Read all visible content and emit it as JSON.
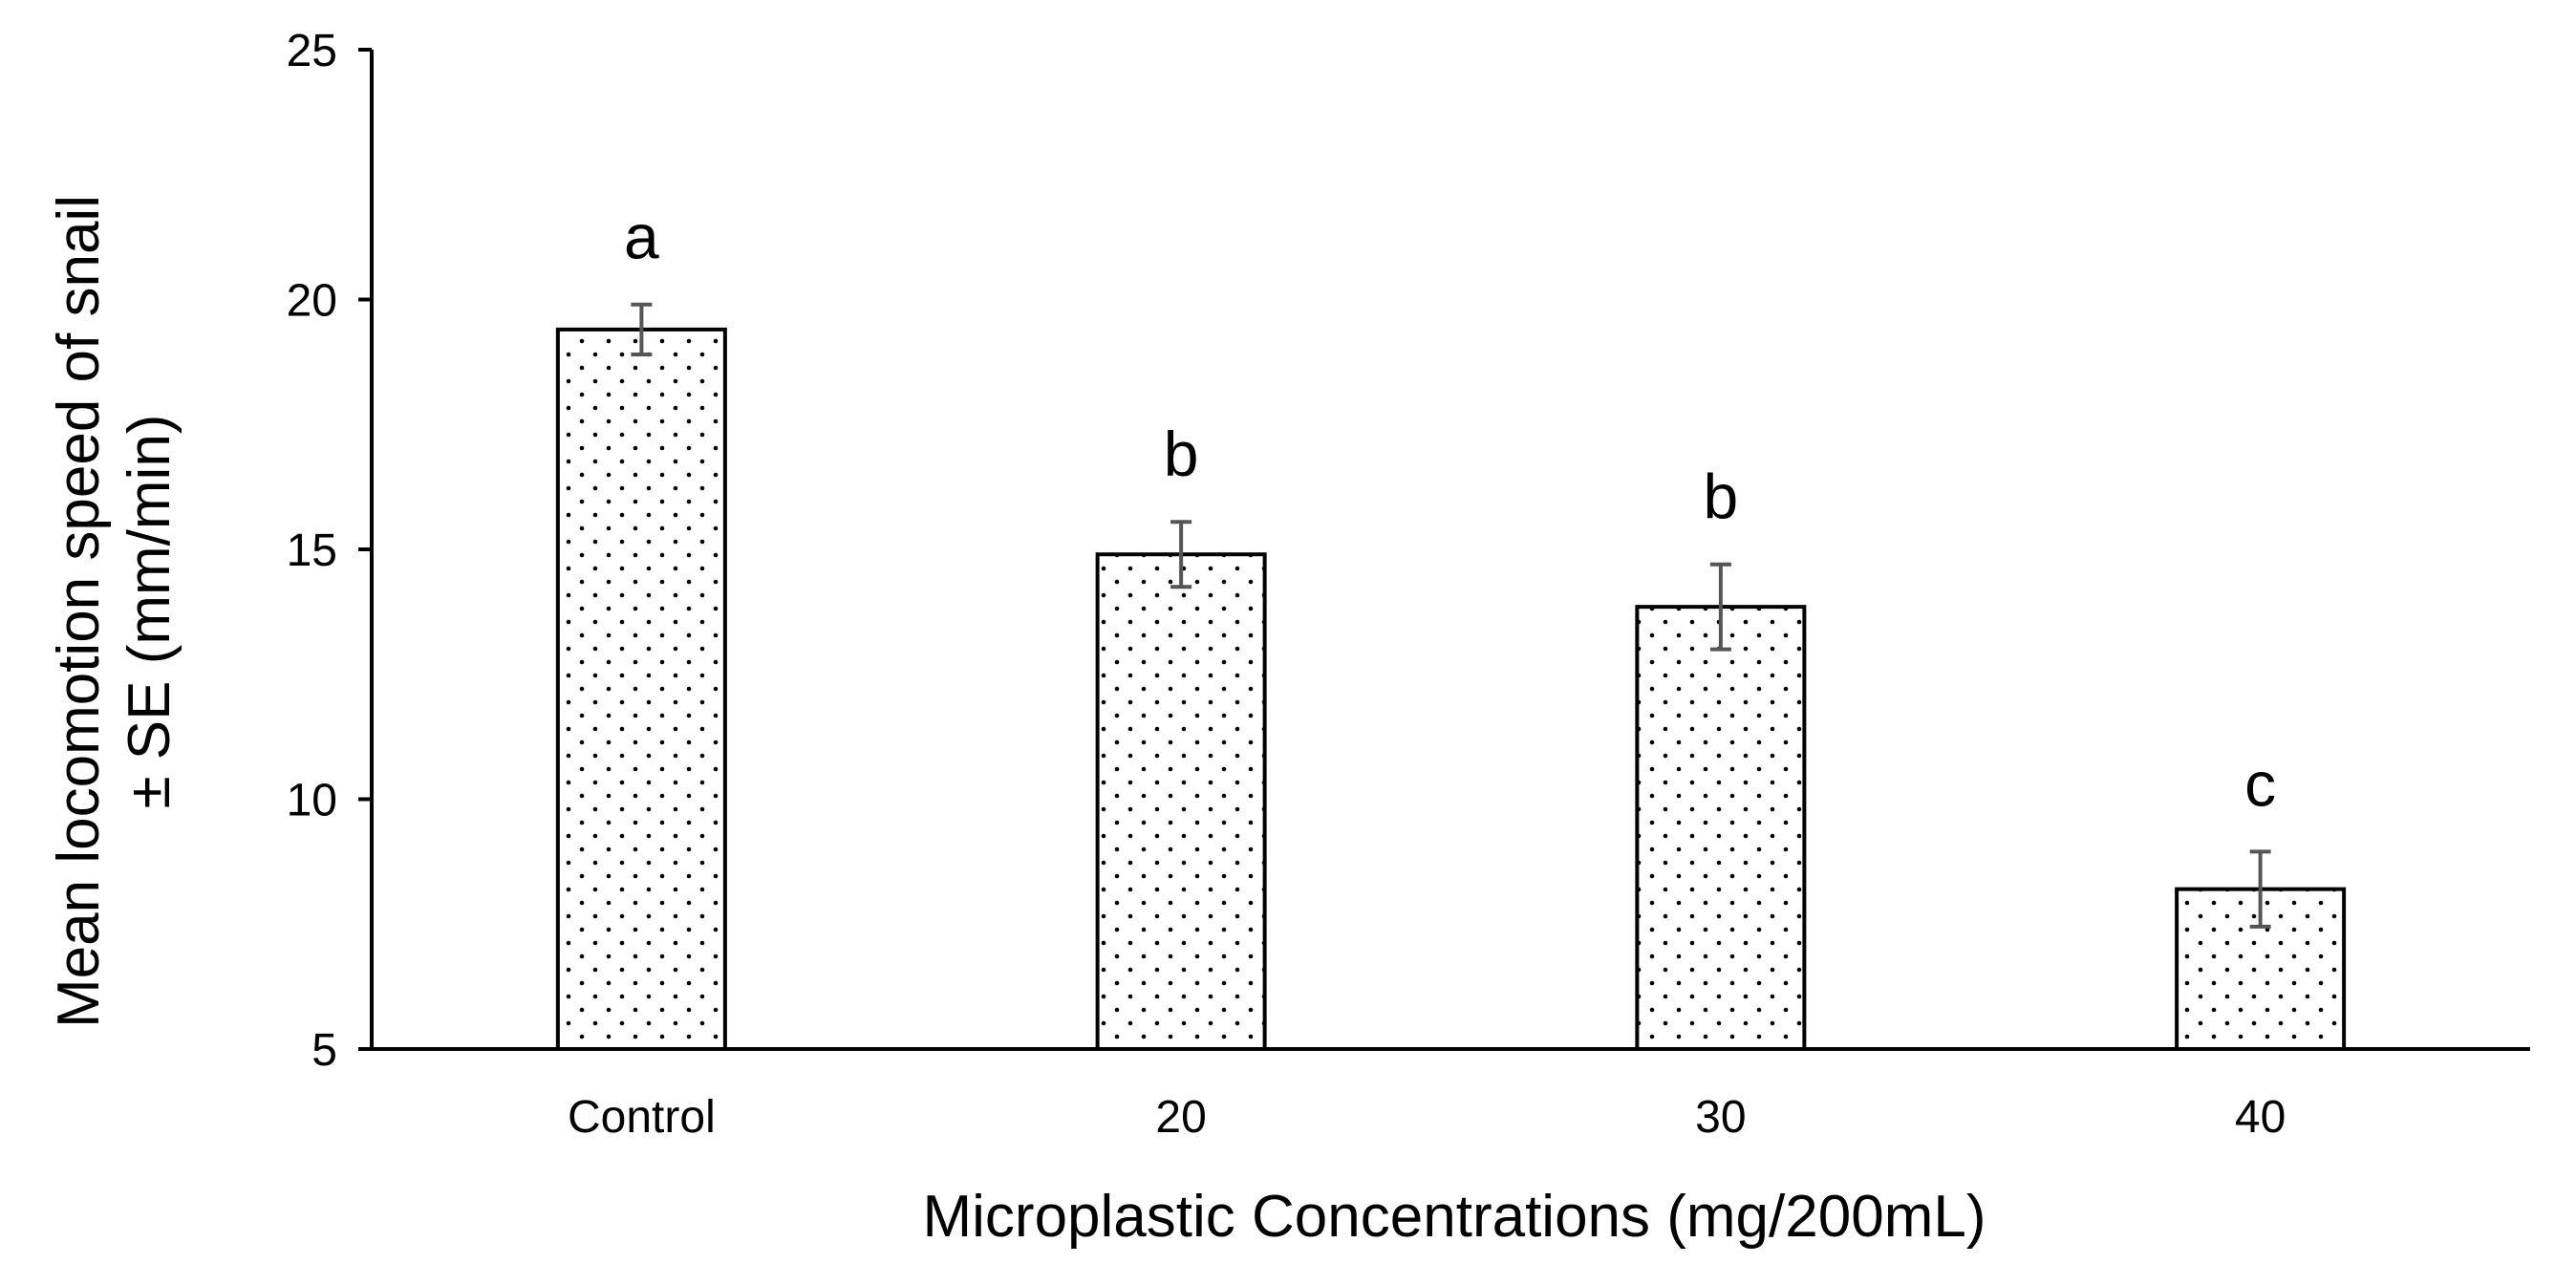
{
  "chart_data": {
    "type": "bar",
    "title": "",
    "xlabel": "Microplastic Concentrations (mg/200mL)",
    "ylabel_lines": [
      "Mean locomotion speed of snail",
      "± SE (mm/min)"
    ],
    "categories": [
      "Control",
      "20",
      "30",
      "40"
    ],
    "values": [
      19.4,
      14.9,
      13.85,
      8.2
    ],
    "errors": [
      0.5,
      0.65,
      0.85,
      0.75
    ],
    "significance_letters": [
      "a",
      "b",
      "b",
      "c"
    ],
    "ylim": [
      5,
      25
    ],
    "yticks": [
      5,
      10,
      15,
      20,
      25
    ],
    "grid": false,
    "legend": "none",
    "colors": {
      "bar_fill": "#ffffff",
      "bar_edge": "#000000",
      "dot_pattern": "#000000",
      "error_bar": "#555555",
      "axis": "#000000"
    }
  }
}
